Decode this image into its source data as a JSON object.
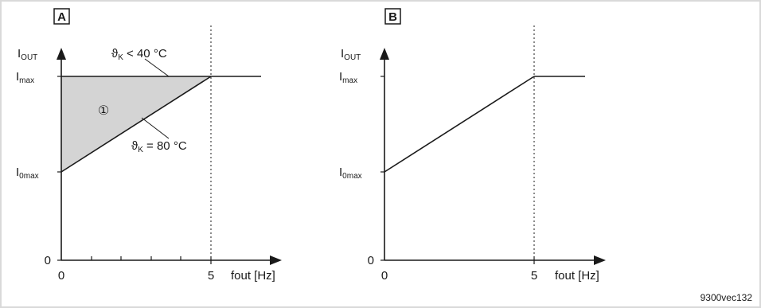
{
  "colors": {
    "background": "#ffffff",
    "border": "#d9d9d9",
    "line": "#1a1a1a",
    "shade": "#d4d4d4"
  },
  "figure_id": "9300vec132",
  "panels": [
    {
      "letter": "A",
      "y_axis": {
        "symbol": "I",
        "subscript": "OUT"
      },
      "y_ticks": [
        {
          "main": "I",
          "sub": "max"
        },
        {
          "main": "I",
          "sub": "0max"
        },
        {
          "main": "0",
          "sub": ""
        }
      ],
      "x_ticks": [
        "0",
        "5"
      ],
      "x_axis_label": "fout [Hz]",
      "curves": [
        {
          "main": "ϑ",
          "sub": "K",
          "rest": " < 40 °C"
        },
        {
          "main": "ϑ",
          "sub": "K",
          "rest": " = 80 °C"
        }
      ],
      "area_marker": "①"
    },
    {
      "letter": "B",
      "y_axis": {
        "symbol": "I",
        "subscript": "OUT"
      },
      "y_ticks": [
        {
          "main": "I",
          "sub": "max"
        },
        {
          "main": "I",
          "sub": "0max"
        },
        {
          "main": "0",
          "sub": ""
        }
      ],
      "x_ticks": [
        "0",
        "5"
      ],
      "x_axis_label": "fout [Hz]"
    }
  ]
}
